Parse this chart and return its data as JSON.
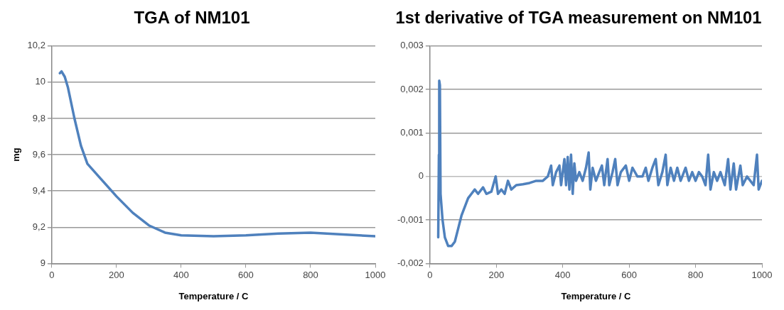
{
  "chart_data": [
    {
      "type": "line",
      "title": "TGA of NM101",
      "xlabel": "Temperature / C",
      "ylabel": "mg",
      "xlim": [
        0,
        1000
      ],
      "xticks": [
        0,
        200,
        400,
        600,
        800,
        1000
      ],
      "ylim": [
        9,
        10.2
      ],
      "yticks": [
        9,
        {
          "value": 9.2,
          "label": "9,2"
        },
        {
          "value": 9.4,
          "label": "9,4"
        },
        {
          "value": 9.6,
          "label": "9,6"
        },
        {
          "value": 9.8,
          "label": "9,8"
        },
        10,
        {
          "value": 10.2,
          "label": "10,2"
        }
      ],
      "grid": "y",
      "legend": false,
      "marker": "none",
      "line_style": "solid",
      "series": [
        {
          "color": "#4f81bd",
          "x": [
            25,
            30,
            40,
            50,
            70,
            90,
            110,
            150,
            200,
            250,
            300,
            350,
            400,
            500,
            600,
            700,
            800,
            900,
            1000
          ],
          "values": [
            10.05,
            10.06,
            10.03,
            9.97,
            9.8,
            9.65,
            9.55,
            9.47,
            9.37,
            9.28,
            9.21,
            9.17,
            9.155,
            9.15,
            9.155,
            9.165,
            9.17,
            9.16,
            9.15
          ]
        }
      ]
    },
    {
      "type": "line",
      "title": "1st derivative of TGA measurement on NM101",
      "xlabel": "Temperature / C",
      "xlim": [
        0,
        1000
      ],
      "xticks": [
        0,
        200,
        400,
        600,
        800,
        1000
      ],
      "ylim": [
        -0.002,
        0.003
      ],
      "yticks": [
        {
          "value": -0.002,
          "label": "-0,002"
        },
        {
          "value": -0.001,
          "label": "-0,001"
        },
        0,
        {
          "value": 0.001,
          "label": "0,001"
        },
        {
          "value": 0.002,
          "label": "0,002"
        },
        {
          "value": 0.003,
          "label": "0,003"
        }
      ],
      "grid": "y",
      "legend": false,
      "marker": "none",
      "line_style": "solid",
      "series": [
        {
          "color": "#4f81bd",
          "x": [
            25,
            27,
            28,
            30,
            32,
            38,
            45,
            55,
            65,
            75,
            85,
            95,
            105,
            115,
            125,
            135,
            145,
            160,
            170,
            185,
            198,
            205,
            215,
            225,
            235,
            245,
            260,
            280,
            300,
            320,
            340,
            355,
            365,
            370,
            380,
            390,
            395,
            405,
            410,
            415,
            420,
            425,
            430,
            435,
            440,
            450,
            460,
            470,
            478,
            483,
            490,
            500,
            510,
            518,
            525,
            535,
            540,
            550,
            558,
            565,
            575,
            590,
            600,
            610,
            625,
            640,
            650,
            658,
            670,
            680,
            688,
            700,
            710,
            715,
            725,
            735,
            745,
            755,
            770,
            780,
            790,
            800,
            810,
            820,
            830,
            838,
            845,
            855,
            865,
            875,
            888,
            898,
            905,
            915,
            922,
            935,
            942,
            955,
            965,
            975,
            985,
            990,
            1000
          ],
          "values": [
            -0.0014,
            0.0005,
            0.0022,
            0.0021,
            -0.0004,
            -0.001,
            -0.0014,
            -0.0016,
            -0.0016,
            -0.0015,
            -0.0012,
            -0.0009,
            -0.0007,
            -0.0005,
            -0.0004,
            -0.0003,
            -0.0004,
            -0.00025,
            -0.0004,
            -0.00035,
            0,
            -0.0004,
            -0.0003,
            -0.0004,
            -0.0001,
            -0.0003,
            -0.0002,
            -0.00018,
            -0.00015,
            -0.0001,
            -0.0001,
            0,
            0.00025,
            -0.0002,
            0.0001,
            0.00025,
            -0.0002,
            0.0004,
            -0.0002,
            0.00045,
            -0.0003,
            0.0005,
            -0.0004,
            0.0003,
            -0.0001,
            0.0001,
            -0.0001,
            0.0002,
            0.00055,
            -0.0003,
            0.0002,
            -0.0001,
            0.0001,
            0.00025,
            -0.0002,
            0.0004,
            -0.0002,
            0.0001,
            0.0004,
            -0.0002,
            0.0001,
            0.00025,
            -0.0001,
            0.0002,
            0,
            0,
            0.0002,
            -0.0001,
            0.0002,
            0.0004,
            -0.0002,
            0.0001,
            0.0005,
            -0.0002,
            0.0002,
            -0.0001,
            0.0002,
            -0.0001,
            0.0002,
            -0.0001,
            0.0001,
            -0.0001,
            0.0001,
            0,
            -0.0002,
            0.0005,
            -0.0003,
            0.0001,
            -0.0001,
            0.0001,
            -0.0002,
            0.0004,
            -0.0003,
            0.0003,
            -0.0003,
            0.00025,
            -0.0002,
            0,
            -0.0001,
            -0.0002,
            0.0005,
            -0.0003,
            -0.0001
          ]
        }
      ]
    }
  ]
}
